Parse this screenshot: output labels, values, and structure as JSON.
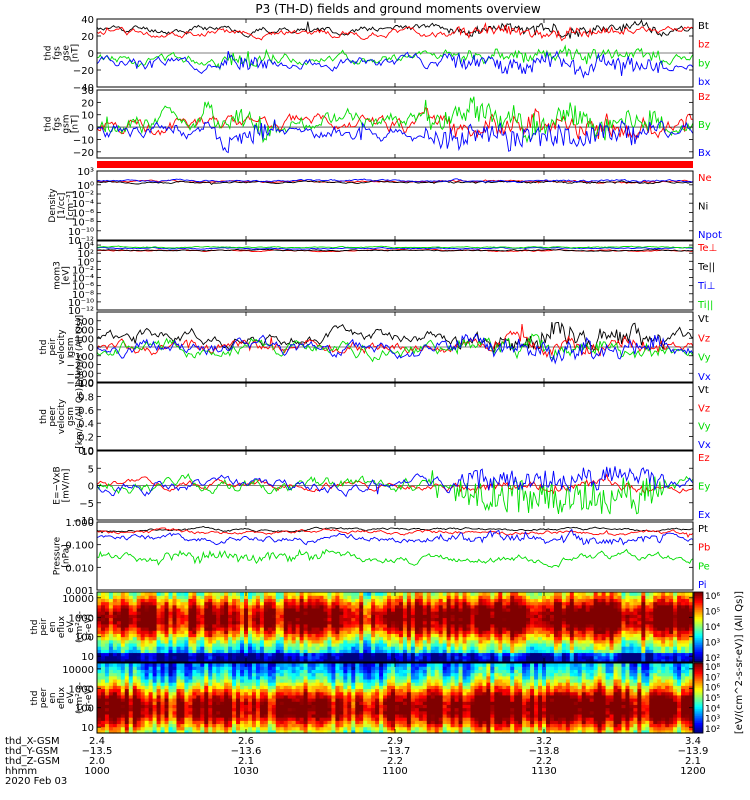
{
  "title": "P3 (TH-D) fields and ground moments overview",
  "chart_data": {
    "type": "line",
    "panels": [
      {
        "id": "fgs-gse",
        "ylabel": [
          "thd",
          "fgs",
          "gse",
          "[nT]"
        ],
        "ylim": [
          -40,
          40
        ],
        "scale": "linear",
        "ticks": [
          -40,
          -20,
          0,
          20,
          40
        ],
        "tick_labels": [
          "−40",
          "−20",
          "0",
          "20",
          "40"
        ],
        "zero_line": true,
        "series": [
          {
            "name": "Bt",
            "color": "#000000",
            "base": 28,
            "amp": 3,
            "burst": 5,
            "bursts": [
              [
                0.58,
                0.95
              ]
            ],
            "seed": 11
          },
          {
            "name": "bz",
            "color": "#ff0000",
            "base": 23,
            "amp": 3,
            "burst": 4,
            "bursts": [
              [
                0.58,
                0.95
              ]
            ],
            "seed": 12
          },
          {
            "name": "by",
            "color": "#00dd00",
            "base": -6,
            "amp": 4,
            "burst": 6,
            "bursts": [
              [
                0.2,
                0.3
              ],
              [
                0.58,
                0.95
              ]
            ],
            "seed": 13
          },
          {
            "name": "bx",
            "color": "#0000ff",
            "base": -12,
            "amp": 4,
            "burst": 7,
            "bursts": [
              [
                0.2,
                0.3
              ],
              [
                0.58,
                0.95
              ]
            ],
            "seed": 14
          }
        ]
      },
      {
        "id": "fgs-gsm",
        "ylabel": [
          "thd",
          "fgs",
          "gsm",
          "[nT]"
        ],
        "ylim": [
          -25,
          30
        ],
        "scale": "linear",
        "ticks": [
          -20,
          -10,
          0,
          10,
          20,
          30
        ],
        "tick_labels": [
          "−20",
          "−10",
          "0",
          "10",
          "20",
          "30"
        ],
        "zero_line": true,
        "series": [
          {
            "name": "Bz",
            "color": "#ff0000",
            "base": 1,
            "amp": 4,
            "burst": 6,
            "bursts": [
              [
                0.55,
                0.95
              ]
            ],
            "seed": 21
          },
          {
            "name": "By",
            "color": "#00dd00",
            "base": 4,
            "amp": 5,
            "burst": 8,
            "bursts": [
              [
                0.17,
                0.3
              ],
              [
                0.55,
                0.95
              ]
            ],
            "seed": 22
          },
          {
            "name": "Bx",
            "color": "#0000ff",
            "base": -5,
            "amp": 4,
            "burst": 8,
            "bursts": [
              [
                0.17,
                0.3
              ],
              [
                0.55,
                0.95
              ]
            ],
            "seed": 23
          }
        ]
      },
      {
        "id": "flag-bar",
        "type": "flag",
        "color": "#ff0000",
        "series": []
      },
      {
        "id": "density",
        "ylabel": [
          "Density",
          "[1/cc]",
          "[cm⁻³]"
        ],
        "ylim_log": [
          -12,
          3
        ],
        "scale": "log",
        "ticks": [
          3,
          0,
          -2,
          -4,
          -6,
          -8,
          -10,
          -12
        ],
        "tick_labels": [
          "10³",
          "10⁰",
          "10⁻²",
          "10⁻⁴",
          "10⁻⁶",
          "10⁻⁸",
          "10⁻¹⁰",
          "10⁻¹²"
        ],
        "series": [
          {
            "name": "Ne",
            "color": "#ff0000",
            "base": 0.7,
            "amp": 0.12,
            "burst": 0.1,
            "bursts": [
              [
                0.55,
                0.95
              ]
            ],
            "seed": 31
          },
          {
            "name": "Ni",
            "color": "#000000",
            "base": 0.6,
            "amp": 0.12,
            "burst": 0.1,
            "bursts": [
              [
                0.55,
                0.95
              ]
            ],
            "seed": 32
          },
          {
            "name": "Npot",
            "color": "#0000ff",
            "base": 0.9,
            "amp": 0.15,
            "burst": 0.1,
            "bursts": [
              [
                0.55,
                0.95
              ]
            ],
            "seed": 33
          }
        ]
      },
      {
        "id": "temperature",
        "ylabel": [
          "mom3",
          "[eV]"
        ],
        "ylim_log": [
          -12,
          5
        ],
        "scale": "log",
        "ticks": [
          4,
          2,
          0,
          -2,
          -4,
          -6,
          -8,
          -10,
          -12
        ],
        "tick_labels": [
          "10⁴",
          "10²",
          "10⁰",
          "10⁻²",
          "10⁻⁴",
          "10⁻⁶",
          "10⁻⁸",
          "10⁻¹⁰",
          "10⁻¹²"
        ],
        "series": [
          {
            "name": "Te⊥",
            "color": "#ff0000",
            "base": 2.6,
            "amp": 0.1,
            "burst": 0.05,
            "bursts": [],
            "seed": 41
          },
          {
            "name": "Te||",
            "color": "#000000",
            "base": 2.7,
            "amp": 0.1,
            "burst": 0.05,
            "bursts": [],
            "seed": 42
          },
          {
            "name": "Ti⊥",
            "color": "#0000ff",
            "base": 3.2,
            "amp": 0.1,
            "burst": 0.05,
            "bursts": [],
            "seed": 43
          },
          {
            "name": "Ti||",
            "color": "#00dd00",
            "base": 3.5,
            "amp": 0.1,
            "burst": 0.05,
            "bursts": [],
            "seed": 44
          }
        ]
      },
      {
        "id": "peir-velocity",
        "ylabel": [
          "thd",
          "peir",
          "velocity",
          "gsm",
          "[km/s (All Qs)]"
        ],
        "ylim": [
          -400,
          400
        ],
        "scale": "linear",
        "ticks": [
          -400,
          -300,
          -200,
          -100,
          0,
          100,
          200,
          300
        ],
        "tick_labels": [
          "−400",
          "−300",
          "−200",
          "−100",
          "0",
          "100",
          "200",
          "300"
        ],
        "zero_line": true,
        "series": [
          {
            "name": "Vt",
            "color": "#000000",
            "base": 110,
            "amp": 45,
            "burst": 90,
            "bursts": [
              [
                0.6,
                0.95
              ]
            ],
            "seed": 51
          },
          {
            "name": "Vz",
            "color": "#ff0000",
            "base": 0,
            "amp": 45,
            "burst": 40,
            "bursts": [
              [
                0.6,
                0.95
              ]
            ],
            "seed": 52
          },
          {
            "name": "Vy",
            "color": "#00dd00",
            "base": -10,
            "amp": 50,
            "burst": 60,
            "bursts": [
              [
                0.6,
                0.95
              ]
            ],
            "seed": 53
          },
          {
            "name": "Vx",
            "color": "#0000ff",
            "base": -40,
            "amp": 55,
            "burst": 80,
            "bursts": [
              [
                0.6,
                0.95
              ]
            ],
            "seed": 54
          }
        ]
      },
      {
        "id": "peer-velocity",
        "ylabel": [
          "thd",
          "peer",
          "velocity",
          "gsm",
          "[km/s (All Qs)]"
        ],
        "ylim": [
          0,
          1
        ],
        "scale": "linear",
        "ticks": [
          0,
          0.2,
          0.4,
          0.6,
          0.8,
          1.0
        ],
        "tick_labels": [
          "0.0",
          "0.2",
          "0.4",
          "0.6",
          "0.8",
          "1.0"
        ],
        "series": [
          {
            "name": "Vt",
            "color": "#000000",
            "empty": true
          },
          {
            "name": "Vz",
            "color": "#ff0000",
            "empty": true
          },
          {
            "name": "Vy",
            "color": "#00dd00",
            "empty": true
          },
          {
            "name": "Vx",
            "color": "#0000ff",
            "empty": true
          }
        ]
      },
      {
        "id": "efield",
        "ylabel": [
          "E=−VxB",
          "[mV/m]"
        ],
        "ylim": [
          -10,
          10
        ],
        "scale": "linear",
        "ticks": [
          -10,
          -5,
          0,
          5,
          10
        ],
        "tick_labels": [
          "−10",
          "−5",
          "0",
          "5",
          "10"
        ],
        "zero_line": true,
        "series": [
          {
            "name": "Ez",
            "color": "#ff0000",
            "base": 0,
            "amp": 0.7,
            "burst": 0.8,
            "bursts": [
              [
                0.6,
                0.95
              ]
            ],
            "seed": 61
          },
          {
            "name": "Ey",
            "color": "#00dd00",
            "base": 0,
            "amp": 1.2,
            "burst": 4.5,
            "bursts": [
              [
                0.6,
                0.95
              ]
            ],
            "seed": 62,
            "shift": -3
          },
          {
            "name": "Ex",
            "color": "#0000ff",
            "base": 0,
            "amp": 1.0,
            "burst": 2.5,
            "bursts": [
              [
                0.6,
                0.95
              ]
            ],
            "seed": 63,
            "shift": 2
          }
        ]
      },
      {
        "id": "pressure",
        "ylabel": [
          "Pressure",
          "[nPa]"
        ],
        "ylim_log": [
          -3,
          0
        ],
        "scale": "log",
        "ticks": [
          0,
          -1,
          -2,
          -3
        ],
        "tick_labels": [
          "1.000",
          "0.100",
          "0.010",
          "0.001"
        ],
        "series": [
          {
            "name": "Pt",
            "color": "#000000",
            "base": -0.33,
            "amp": 0.04,
            "burst": 0.03,
            "bursts": [],
            "seed": 71
          },
          {
            "name": "Pb",
            "color": "#ff0000",
            "base": -0.45,
            "amp": 0.06,
            "burst": 0.05,
            "bursts": [],
            "seed": 72
          },
          {
            "name": "Pe",
            "color": "#00dd00",
            "base": -1.6,
            "amp": 0.12,
            "burst": 0.15,
            "bursts": [
              [
                0.1,
                0.4
              ]
            ],
            "seed": 73
          },
          {
            "name": "Pi",
            "color": "#0000ff",
            "base": -0.7,
            "amp": 0.1,
            "burst": 0.12,
            "bursts": [
              [
                0.55,
                0.95
              ]
            ],
            "seed": 74
          }
        ]
      },
      {
        "id": "peir-spec",
        "type": "spectrogram",
        "ylabel": [
          "thd",
          "peir",
          "en",
          "eflux",
          "eV",
          "(cm²-s-",
          "sr-eV)"
        ],
        "ylim_log": [
          0.7,
          4.3
        ],
        "ticks": [
          1,
          2,
          3,
          4
        ],
        "tick_labels": [
          "10",
          "100",
          "1000",
          "10000"
        ],
        "peak_log": 3.0,
        "seed": 81,
        "colorbar": {
          "label": "[eV/(cm^2-s-sr-eV)]",
          "ticks": [
            "10⁶",
            "10⁵",
            "10⁴",
            "10³",
            "10²"
          ]
        }
      },
      {
        "id": "peer-spec",
        "type": "spectrogram",
        "ylabel": [
          "thd",
          "peer",
          "en",
          "eflux",
          "eV",
          "(cm²-s-",
          "sr-eV)"
        ],
        "ylim_log": [
          0.7,
          4.3
        ],
        "ticks": [
          1,
          2,
          3,
          4
        ],
        "tick_labels": [
          "10",
          "100",
          "1000",
          "10000"
        ],
        "peak_log": 2.0,
        "seed": 91,
        "colorbar": {
          "label": "[eV/(cm^2-s-sr-eV)] (All Qs)]",
          "ticks": [
            "10⁸",
            "10⁷",
            "10⁶",
            "10⁵",
            "10⁴",
            "10³",
            "10²"
          ]
        }
      }
    ],
    "x_axis": {
      "row_labels": [
        "thd_X-GSM",
        "thd_Y-GSM",
        "thd_Z-GSM",
        "hhmm",
        "2020 Feb 03"
      ],
      "columns": [
        [
          "2.4",
          "−13.5",
          "2.0",
          "1000"
        ],
        [
          "2.6",
          "−13.6",
          "2.1",
          "1030"
        ],
        [
          "2.9",
          "−13.7",
          "2.2",
          "1100"
        ],
        [
          "3.2",
          "−13.8",
          "2.2",
          "1130"
        ],
        [
          "3.4",
          "−13.9",
          "2.1",
          "1200"
        ]
      ],
      "xlim_min": [
        0,
        120
      ]
    }
  }
}
